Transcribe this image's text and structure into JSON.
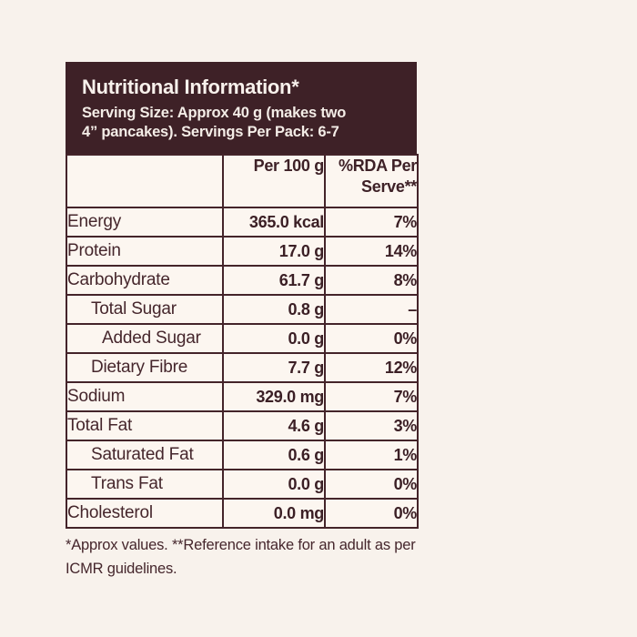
{
  "colors": {
    "page_background": "#F8F2EC",
    "panel_background": "#3E2127",
    "panel_text": "#F8F1EC",
    "table_background": "#FCF6F0",
    "border": "#44242A",
    "body_text": "#45262C"
  },
  "panel": {
    "title": "Nutritional Information*",
    "subtitle_line1": "Serving Size: Approx 40 g (makes two",
    "subtitle_line2": "4” pancakes). Servings Per Pack: 6-7"
  },
  "table": {
    "header": {
      "col1": "",
      "col2": "Per 100 g",
      "col3_line1": "%RDA Per",
      "col3_line2": "Serve**"
    },
    "rows": [
      {
        "label": "Energy",
        "value": "365.0 kcal",
        "rda": "7%"
      },
      {
        "label": "Protein",
        "value": "17.0 g",
        "rda": "14%"
      },
      {
        "label": "Carbohydrate",
        "value": "61.7 g",
        "rda": "8%"
      },
      {
        "label": "Total Sugar",
        "value": "0.8 g",
        "rda": "–"
      },
      {
        "label": "Added Sugar",
        "value": "0.0 g",
        "rda": "0%"
      },
      {
        "label": "Dietary Fibre",
        "value": "7.7 g",
        "rda": "12%"
      },
      {
        "label": "Sodium",
        "value": "329.0 mg",
        "rda": "7%"
      },
      {
        "label": "Total Fat",
        "value": "4.6 g",
        "rda": "3%"
      },
      {
        "label": "Saturated Fat",
        "value": "0.6 g",
        "rda": "1%"
      },
      {
        "label": "Trans Fat",
        "value": "0.0 g",
        "rda": "0%"
      },
      {
        "label": "Cholesterol",
        "value": "0.0 mg",
        "rda": "0%"
      }
    ]
  },
  "footnote": {
    "line1": "*Approx values. **Reference intake for an adult as per",
    "line2": "ICMR guidelines."
  }
}
